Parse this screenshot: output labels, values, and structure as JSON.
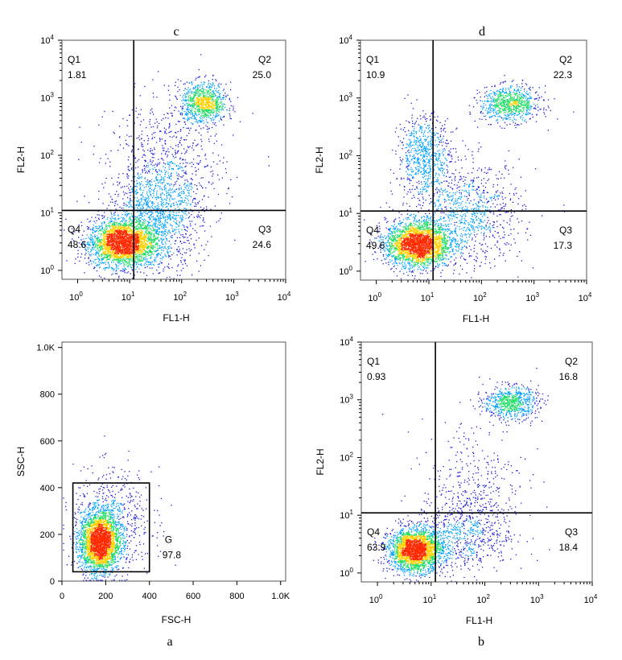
{
  "figure": {
    "panel_labels": [
      "c",
      "d",
      "a",
      "b"
    ]
  },
  "colors": {
    "sparse": "#1a1adf",
    "dense_low": "#00a0ff",
    "dense_mid": "#22dd66",
    "dense_high": "#ffd000",
    "dense_peak": "#ff2a00",
    "gate_line": "#000000"
  },
  "chart_data": [
    {
      "panel": "c",
      "type": "scatter",
      "subtype": "flow-cytometry-quadrant-dot-plot",
      "xlabel": "FL1-H",
      "ylabel": "FL2-H",
      "xscale": "log",
      "yscale": "log",
      "xlim": [
        0.5,
        10000
      ],
      "ylim": [
        0.7,
        10000
      ],
      "x_tick_labels": [
        "10^0",
        "10^1",
        "10^2",
        "10^3",
        "10^4"
      ],
      "y_tick_labels": [
        "10^0",
        "10^1",
        "10^2",
        "10^3",
        "10^4"
      ],
      "quadrant_gate": {
        "x": 12,
        "y": 11
      },
      "quadrants": [
        {
          "name": "Q1",
          "percent": "1.81"
        },
        {
          "name": "Q2",
          "percent": "25.0"
        },
        {
          "name": "Q3",
          "percent": "24.6"
        },
        {
          "name": "Q4",
          "percent": "48.6"
        }
      ],
      "populations": [
        {
          "center": [
            7,
            3
          ],
          "spread": [
            0.32,
            0.2
          ],
          "n": 2600
        },
        {
          "center": [
            260,
            800
          ],
          "spread": [
            0.22,
            0.18
          ],
          "n": 900
        },
        {
          "center": [
            30,
            8
          ],
          "spread": [
            0.45,
            0.45
          ],
          "n": 1200
        },
        {
          "center": [
            50,
            60
          ],
          "spread": [
            0.55,
            0.6
          ],
          "n": 700
        }
      ]
    },
    {
      "panel": "d",
      "type": "scatter",
      "subtype": "flow-cytometry-quadrant-dot-plot",
      "xlabel": "FL1-H",
      "ylabel": "FL2-H",
      "xscale": "log",
      "yscale": "log",
      "xlim": [
        0.5,
        10000
      ],
      "ylim": [
        0.7,
        10000
      ],
      "x_tick_labels": [
        "10^0",
        "10^1",
        "10^2",
        "10^3",
        "10^4"
      ],
      "y_tick_labels": [
        "10^0",
        "10^1",
        "10^2",
        "10^3",
        "10^4"
      ],
      "quadrant_gate": {
        "x": 12,
        "y": 11
      },
      "quadrants": [
        {
          "name": "Q1",
          "percent": "10.9"
        },
        {
          "name": "Q2",
          "percent": "22.3"
        },
        {
          "name": "Q3",
          "percent": "17.3"
        },
        {
          "name": "Q4",
          "percent": "49.6"
        }
      ],
      "populations": [
        {
          "center": [
            6,
            3
          ],
          "spread": [
            0.3,
            0.2
          ],
          "n": 2600
        },
        {
          "center": [
            350,
            800
          ],
          "spread": [
            0.28,
            0.15
          ],
          "n": 800
        },
        {
          "center": [
            8,
            100
          ],
          "spread": [
            0.25,
            0.35
          ],
          "n": 700
        },
        {
          "center": [
            60,
            10
          ],
          "spread": [
            0.5,
            0.45
          ],
          "n": 900
        }
      ]
    },
    {
      "panel": "a",
      "type": "scatter",
      "subtype": "flow-cytometry-scatter-gate",
      "xlabel": "FSC-H",
      "ylabel": "SSC-H",
      "xscale": "linear",
      "yscale": "linear",
      "xlim": [
        0,
        1023
      ],
      "ylim": [
        0,
        1023
      ],
      "x_tick_labels": [
        "0",
        "200",
        "400",
        "600",
        "800",
        "1.0K"
      ],
      "y_tick_labels": [
        "0",
        "200",
        "400",
        "600",
        "800",
        "1.0K"
      ],
      "gate": {
        "name": "G",
        "percent": "97.8",
        "x": [
          50,
          400
        ],
        "y": [
          40,
          420
        ]
      },
      "populations": [
        {
          "center": [
            170,
            170
          ],
          "spread": [
            45,
            65
          ],
          "n": 2600
        },
        {
          "center": [
            230,
            260
          ],
          "spread": [
            90,
            110
          ],
          "n": 600
        }
      ]
    },
    {
      "panel": "b",
      "type": "scatter",
      "subtype": "flow-cytometry-quadrant-dot-plot",
      "xlabel": "FL1-H",
      "ylabel": "FL2-H",
      "xscale": "log",
      "yscale": "log",
      "xlim": [
        0.5,
        10000
      ],
      "ylim": [
        0.7,
        10000
      ],
      "x_tick_labels": [
        "10^0",
        "10^1",
        "10^2",
        "10^3",
        "10^4"
      ],
      "y_tick_labels": [
        "10^0",
        "10^1",
        "10^2",
        "10^3",
        "10^4"
      ],
      "quadrant_gate": {
        "x": 12,
        "y": 11
      },
      "quadrants": [
        {
          "name": "Q1",
          "percent": "0.93"
        },
        {
          "name": "Q2",
          "percent": "16.8"
        },
        {
          "name": "Q3",
          "percent": "18.4"
        },
        {
          "name": "Q4",
          "percent": "63.9"
        }
      ],
      "populations": [
        {
          "center": [
            5,
            2.5
          ],
          "spread": [
            0.25,
            0.18
          ],
          "n": 2400
        },
        {
          "center": [
            300,
            900
          ],
          "spread": [
            0.25,
            0.14
          ],
          "n": 700
        },
        {
          "center": [
            40,
            5
          ],
          "spread": [
            0.45,
            0.35
          ],
          "n": 700
        },
        {
          "center": [
            60,
            40
          ],
          "spread": [
            0.5,
            0.55
          ],
          "n": 300
        }
      ]
    }
  ]
}
